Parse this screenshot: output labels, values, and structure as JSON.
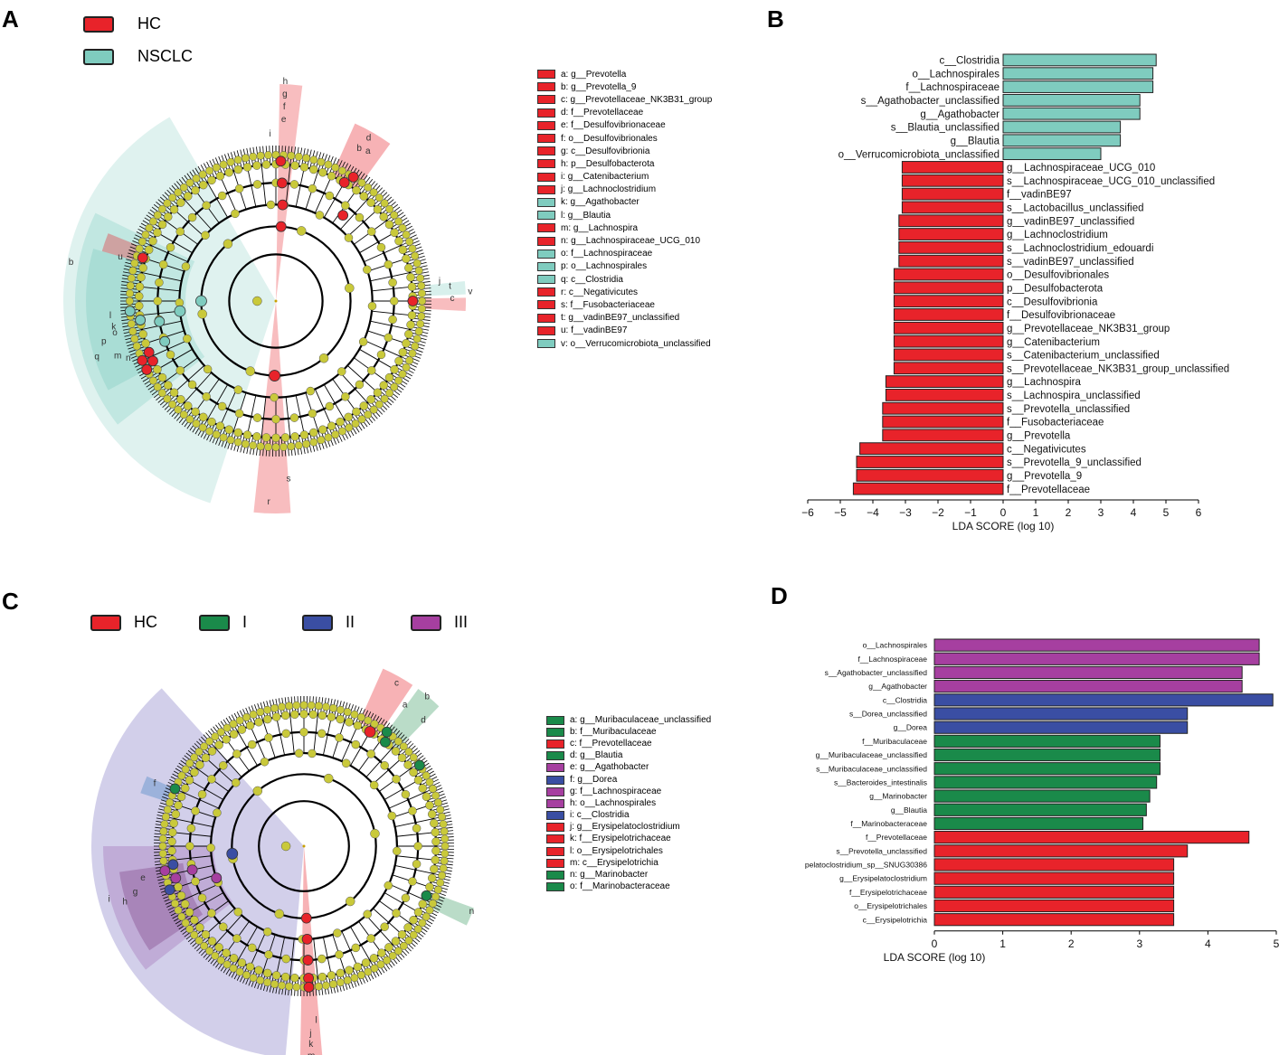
{
  "panels": {
    "A": "A",
    "B": "B",
    "C": "C",
    "D": "D"
  },
  "colors": {
    "red": "#e8232a",
    "teal": "#7fccbf",
    "green": "#1a8a4a",
    "blue": "#3a4ea3",
    "purple": "#a63fa0",
    "node": "#c9c93a"
  },
  "legendA": [
    {
      "label": "HC",
      "color": "#e8232a"
    },
    {
      "label": "NSCLC",
      "color": "#7fccbf"
    }
  ],
  "legendC": [
    {
      "label": "HC",
      "color": "#e8232a"
    },
    {
      "label": "I",
      "color": "#1a8a4a"
    },
    {
      "label": "II",
      "color": "#3a4ea3"
    },
    {
      "label": "III",
      "color": "#a63fa0"
    }
  ],
  "keyA": [
    {
      "text": "a: g__Prevotella",
      "c": "red"
    },
    {
      "text": "b: g__Prevotella_9",
      "c": "red"
    },
    {
      "text": "c: g__Prevotellaceae_NK3B31_group",
      "c": "red"
    },
    {
      "text": "d: f__Prevotellaceae",
      "c": "red"
    },
    {
      "text": "e: f__Desulfovibrionaceae",
      "c": "red"
    },
    {
      "text": "f: o__Desulfovibrionales",
      "c": "red"
    },
    {
      "text": "g: c__Desulfovibrionia",
      "c": "red"
    },
    {
      "text": "h: p__Desulfobacterota",
      "c": "red"
    },
    {
      "text": "i: g__Catenibacterium",
      "c": "red"
    },
    {
      "text": "j: g__Lachnoclostridium",
      "c": "red"
    },
    {
      "text": "k: g__Agathobacter",
      "c": "teal"
    },
    {
      "text": "l: g__Blautia",
      "c": "teal"
    },
    {
      "text": "m: g__Lachnospira",
      "c": "red"
    },
    {
      "text": "n: g__Lachnospiraceae_UCG_010",
      "c": "red"
    },
    {
      "text": "o: f__Lachnospiraceae",
      "c": "teal"
    },
    {
      "text": "p: o__Lachnospirales",
      "c": "teal"
    },
    {
      "text": "q: c__Clostridia",
      "c": "teal"
    },
    {
      "text": "r: c__Negativicutes",
      "c": "red"
    },
    {
      "text": "s: f__Fusobacteriaceae",
      "c": "red"
    },
    {
      "text": "t: g__vadinBE97_unclassified",
      "c": "red"
    },
    {
      "text": "u: f__vadinBE97",
      "c": "red"
    },
    {
      "text": "v: o__Verrucomicrobiota_unclassified",
      "c": "teal"
    }
  ],
  "keyC": [
    {
      "text": "a: g__Muribaculaceae_unclassified",
      "c": "green"
    },
    {
      "text": "b: f__Muribaculaceae",
      "c": "green"
    },
    {
      "text": "c: f__Prevotellaceae",
      "c": "red"
    },
    {
      "text": "d: g__Blautia",
      "c": "green"
    },
    {
      "text": "e: g__Agathobacter",
      "c": "purple"
    },
    {
      "text": "f: g__Dorea",
      "c": "blue"
    },
    {
      "text": "g: f__Lachnospiraceae",
      "c": "purple"
    },
    {
      "text": "h: o__Lachnospirales",
      "c": "purple"
    },
    {
      "text": "i: c__Clostridia",
      "c": "blue"
    },
    {
      "text": "j: g__Erysipelatoclostridium",
      "c": "red"
    },
    {
      "text": "k: f__Erysipelotrichaceae",
      "c": "red"
    },
    {
      "text": "l: o__Erysipelotrichales",
      "c": "red"
    },
    {
      "text": "m: c__Erysipelotrichia",
      "c": "red"
    },
    {
      "text": "n: g__Marinobacter",
      "c": "green"
    },
    {
      "text": "o: f__Marinobacteraceae",
      "c": "green"
    }
  ],
  "cladoA": {
    "sector_labels": [
      "h",
      "g",
      "f",
      "e",
      "i",
      "d",
      "a",
      "b",
      "c",
      "j",
      "k",
      "l",
      "b",
      "q",
      "p",
      "o",
      "m",
      "n",
      "r",
      "s",
      "v",
      "t",
      "u"
    ]
  },
  "cladoC": {
    "sector_labels": [
      "c",
      "a",
      "b",
      "d",
      "f",
      "i",
      "h",
      "g",
      "e",
      "n",
      "m",
      "k",
      "j",
      "l"
    ]
  },
  "chart_data": [
    {
      "type": "bar",
      "orientation": "horizontal",
      "panel": "B",
      "xlabel": "LDA SCORE (log 10)",
      "xlim": [
        -6.5,
        6.5
      ],
      "xticks": [
        "−6",
        "−5",
        "−4",
        "−3",
        "−2",
        "−1",
        "0",
        "1",
        "2",
        "3",
        "4",
        "5",
        "6"
      ],
      "categories": [
        "c__Clostridia",
        "o__Lachnospirales",
        "f__Lachnospiraceae",
        "s__Agathobacter_unclassified",
        "g__Agathobacter",
        "s__Blautia_unclassified",
        "g__Blautia",
        "o__Verrucomicrobiota_unclassified",
        "g__Lachnospiraceae_UCG_010",
        "s__Lachnospiraceae_UCG_010_unclassified",
        "f__vadinBE97",
        "s__Lactobacillus_unclassified",
        "g__vadinBE97_unclassified",
        "g__Lachnoclostridium",
        "s__Lachnoclostridium_edouardi",
        "s__vadinBE97_unclassified",
        "o__Desulfovibrionales",
        "p__Desulfobacterota",
        "c__Desulfovibrionia",
        "f__Desulfovibrionaceae",
        "g__Prevotellaceae_NK3B31_group",
        "g__Catenibacterium",
        "s__Catenibacterium_unclassified",
        "s__Prevotellaceae_NK3B31_group_unclassified",
        "g__Lachnospira",
        "s__Lachnospira_unclassified",
        "s__Prevotella_unclassified",
        "f__Fusobacteriaceae",
        "g__Prevotella",
        "c__Negativicutes",
        "s__Prevotella_9_unclassified",
        "g__Prevotella_9",
        "f__Prevotellaceae"
      ],
      "values": [
        4.7,
        4.6,
        4.6,
        4.2,
        4.2,
        3.6,
        3.6,
        3.0,
        -3.1,
        -3.1,
        -3.1,
        -3.1,
        -3.2,
        -3.2,
        -3.2,
        -3.2,
        -3.35,
        -3.35,
        -3.35,
        -3.35,
        -3.35,
        -3.35,
        -3.35,
        -3.35,
        -3.6,
        -3.6,
        -3.7,
        -3.7,
        -3.7,
        -4.4,
        -4.5,
        -4.5,
        -4.6
      ],
      "groups": [
        "teal",
        "teal",
        "teal",
        "teal",
        "teal",
        "teal",
        "teal",
        "teal",
        "red",
        "red",
        "red",
        "red",
        "red",
        "red",
        "red",
        "red",
        "red",
        "red",
        "red",
        "red",
        "red",
        "red",
        "red",
        "red",
        "red",
        "red",
        "red",
        "red",
        "red",
        "red",
        "red",
        "red",
        "red"
      ]
    },
    {
      "type": "bar",
      "orientation": "horizontal",
      "panel": "D",
      "xlabel": "LDA SCORE (log 10)",
      "xlim": [
        0,
        5
      ],
      "xticks": [
        "0",
        "1",
        "2",
        "3",
        "4",
        "5"
      ],
      "categories": [
        "o__Lachnospirales",
        "f__Lachnospiraceae",
        "s__Agathobacter_unclassified",
        "g__Agathobacter",
        "c__Clostridia",
        "s__Dorea_unclassified",
        "g__Dorea",
        "f__Muribaculaceae",
        "g__Muribaculaceae_unclassified",
        "s__Muribaculaceae_unclassified",
        "s__Bacteroides_intestinalis",
        "g__Marinobacter",
        "g__Blautia",
        "f__Marinobacteraceae",
        "f__Prevotellaceae",
        "s__Prevotella_unclassified",
        "pelatoclostridium_sp__SNUG30386",
        "g__Erysipelatoclostridium",
        "f__Erysipelotrichaceae",
        "o__Erysipelotrichales",
        "c__Erysipelotrichia"
      ],
      "values": [
        4.75,
        4.75,
        4.5,
        4.5,
        4.95,
        3.7,
        3.7,
        3.3,
        3.3,
        3.3,
        3.25,
        3.15,
        3.1,
        3.05,
        4.6,
        3.7,
        3.5,
        3.5,
        3.5,
        3.5,
        3.5
      ],
      "groups": [
        "purple",
        "purple",
        "purple",
        "purple",
        "blue",
        "blue",
        "blue",
        "green",
        "green",
        "green",
        "green",
        "green",
        "green",
        "green",
        "red",
        "red",
        "red",
        "red",
        "red",
        "red",
        "red"
      ]
    }
  ]
}
